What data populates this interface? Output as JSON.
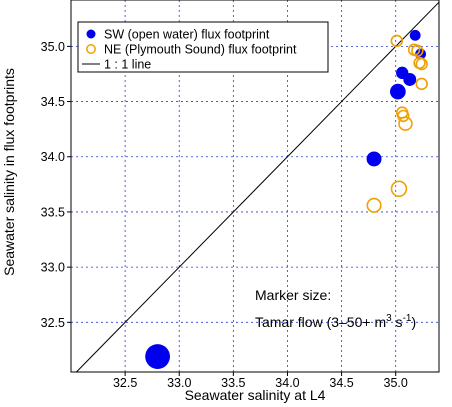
{
  "chart_data": {
    "type": "scatter",
    "xlabel": "Seawater salinity at L4",
    "ylabel": "Seawater salinity in flux footprints",
    "xlim": [
      32.0,
      35.4
    ],
    "ylim": [
      32.05,
      35.42
    ],
    "x_ticks": [
      "32.5",
      "33.0",
      "33.5",
      "34.0",
      "34.5",
      "35.0"
    ],
    "y_ticks": [
      "32.5",
      "33.0",
      "33.5",
      "34.0",
      "34.5",
      "35.0"
    ],
    "grid": "dashed, blue",
    "legend_position": "top-left",
    "series": [
      {
        "name": "SW (open water) flux footprint",
        "color": "#0000ee",
        "marker": "filled-circle",
        "points": [
          {
            "x": 32.8,
            "y": 32.19,
            "flow": 50
          },
          {
            "x": 34.8,
            "y": 33.98,
            "flow": 12
          },
          {
            "x": 35.02,
            "y": 34.59,
            "flow": 14
          },
          {
            "x": 35.06,
            "y": 34.76,
            "flow": 7
          },
          {
            "x": 35.13,
            "y": 34.7,
            "flow": 8
          },
          {
            "x": 35.18,
            "y": 35.1,
            "flow": 5
          },
          {
            "x": 35.23,
            "y": 34.93,
            "flow": 5
          }
        ]
      },
      {
        "name": "NE (Plymouth Sound) flux footprint",
        "color": "#f0a000",
        "marker": "open-circle",
        "points": [
          {
            "x": 34.8,
            "y": 33.56,
            "flow": 9
          },
          {
            "x": 35.03,
            "y": 33.71,
            "flow": 12
          },
          {
            "x": 35.01,
            "y": 35.05,
            "flow": 5
          },
          {
            "x": 35.06,
            "y": 34.4,
            "flow": 5
          },
          {
            "x": 35.07,
            "y": 34.37,
            "flow": 5
          },
          {
            "x": 35.09,
            "y": 34.3,
            "flow": 8
          },
          {
            "x": 35.17,
            "y": 34.97,
            "flow": 5
          },
          {
            "x": 35.2,
            "y": 34.96,
            "flow": 5
          },
          {
            "x": 35.22,
            "y": 34.85,
            "flow": 5
          },
          {
            "x": 35.24,
            "y": 34.84,
            "flow": 5
          },
          {
            "x": 35.24,
            "y": 34.66,
            "flow": 5
          }
        ]
      }
    ],
    "reference_line": {
      "name": "1 : 1 line",
      "color": "#000000"
    },
    "annotation": {
      "line1": "Marker size:",
      "line2_prefix": "Tamar flow (3–50+ m",
      "line2_sup1": "3",
      "line2_mid": " s",
      "line2_sup2": "-1",
      "line2_suffix": ")"
    }
  }
}
